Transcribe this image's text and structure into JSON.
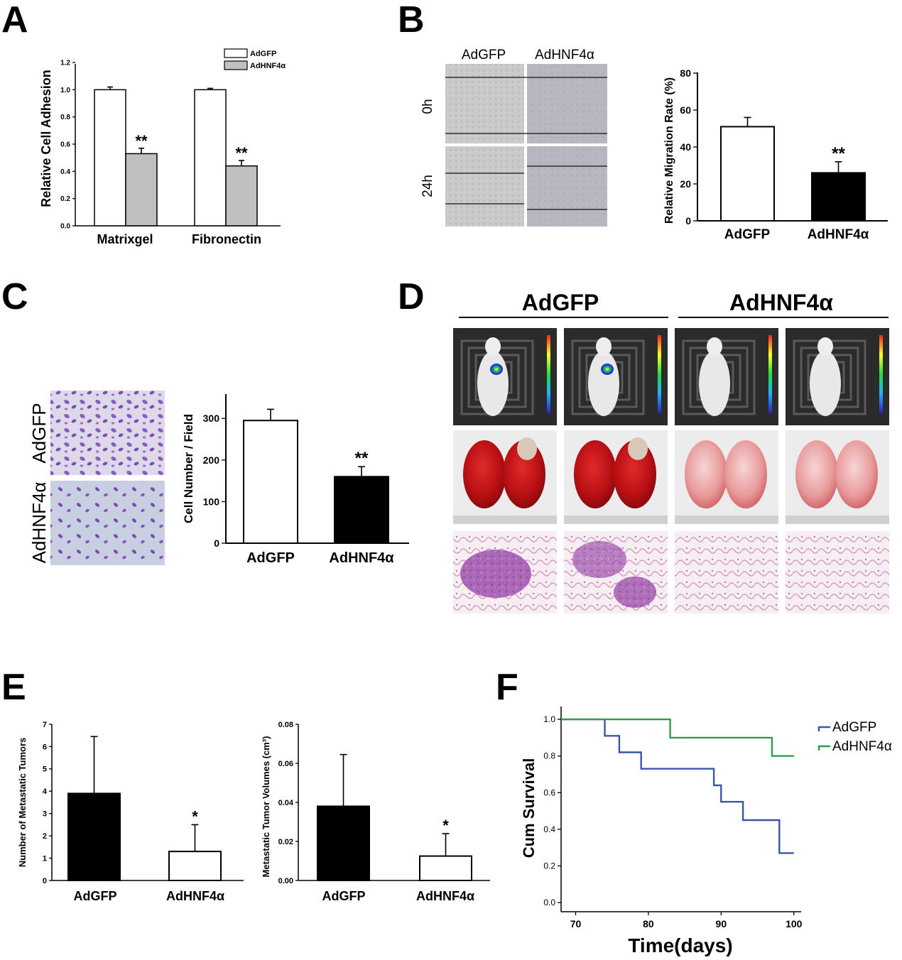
{
  "panels": {
    "A": "A",
    "B": "B",
    "C": "C",
    "D": "D",
    "E": "E",
    "F": "F"
  },
  "groups": {
    "gfp": "AdGFP",
    "hnf": "AdHNF4α"
  },
  "imaging": {
    "B_rows": [
      "0h",
      "24h"
    ],
    "B_cols": [
      "AdGFP",
      "AdHNF4α"
    ],
    "C_rows": [
      "AdGFP",
      "AdHNF4α"
    ],
    "D_headers": [
      "AdGFP",
      "AdHNF4α"
    ]
  },
  "colors": {
    "bar_white": "#ffffff",
    "bar_gray": "#c0c0c0",
    "bar_black": "#000000",
    "survival_gfp": "#3a56a8",
    "survival_hnf": "#2f9e4a"
  },
  "chart_data": [
    {
      "id": "A",
      "type": "bar",
      "categories": [
        "Matrixgel",
        "Fibronectin"
      ],
      "series": [
        {
          "name": "AdGFP",
          "values": [
            1.0,
            1.0
          ],
          "errors": [
            0.02,
            0.01
          ]
        },
        {
          "name": "AdHNF4α",
          "values": [
            0.53,
            0.44
          ],
          "errors": [
            0.04,
            0.04
          ]
        }
      ],
      "annotations": [
        [
          "",
          "**"
        ],
        [
          "",
          "**"
        ]
      ],
      "ylabel": "Relative Cell Adhesion",
      "xlabel": "",
      "ylim": [
        0,
        1.2
      ],
      "yticks": [
        "0.0",
        "0.2",
        "0.4",
        "0.6",
        "0.8",
        "1.0",
        "1.2"
      ],
      "legend": "top-right"
    },
    {
      "id": "B",
      "type": "bar",
      "categories": [
        "AdGFP",
        "AdHNF4α"
      ],
      "values": [
        51,
        26
      ],
      "errors": [
        5,
        6
      ],
      "annotations": [
        "",
        "**"
      ],
      "ylabel": "Relative Migration Rate (%)",
      "xlabel": "",
      "ylim": [
        0,
        80
      ],
      "yticks": [
        "0",
        "20",
        "40",
        "60",
        "80"
      ]
    },
    {
      "id": "C",
      "type": "bar",
      "categories": [
        "AdGFP",
        "AdHNF4α"
      ],
      "values": [
        295,
        160
      ],
      "errors": [
        27,
        24
      ],
      "annotations": [
        "",
        "**"
      ],
      "ylabel": "Cell Number / Field",
      "xlabel": "",
      "ylim": [
        0,
        350
      ],
      "yticks": [
        "0",
        "100",
        "200",
        "300"
      ]
    },
    {
      "id": "E1",
      "type": "bar",
      "categories": [
        "AdGFP",
        "AdHNF4α"
      ],
      "values": [
        3.9,
        1.3
      ],
      "errors": [
        2.55,
        1.2
      ],
      "annotations": [
        "",
        "*"
      ],
      "ylabel": "Number of Metastatic Tumors",
      "xlabel": "",
      "ylim": [
        0,
        7
      ],
      "yticks": [
        "0",
        "1",
        "2",
        "3",
        "4",
        "5",
        "6",
        "7"
      ]
    },
    {
      "id": "E2",
      "type": "bar",
      "categories": [
        "AdGFP",
        "AdHNF4α"
      ],
      "values": [
        0.038,
        0.0125
      ],
      "errors": [
        0.0265,
        0.0115
      ],
      "annotations": [
        "",
        "*"
      ],
      "ylabel": "Metastatic Tumor Volumes (cm³)",
      "xlabel": "",
      "ylim": [
        0,
        0.08
      ],
      "yticks": [
        "0.00",
        "0.02",
        "0.04",
        "0.06",
        "0.08"
      ]
    },
    {
      "id": "F",
      "type": "line",
      "series": [
        {
          "name": "AdGFP",
          "x": [
            68,
            74,
            74,
            76,
            76,
            79,
            79,
            89,
            89,
            90,
            90,
            93,
            93,
            98,
            98,
            100
          ],
          "y": [
            1.0,
            1.0,
            0.91,
            0.91,
            0.82,
            0.82,
            0.73,
            0.73,
            0.64,
            0.64,
            0.55,
            0.55,
            0.45,
            0.45,
            0.27,
            0.27
          ]
        },
        {
          "name": "AdHNF4α",
          "x": [
            68,
            83,
            83,
            97,
            97,
            100
          ],
          "y": [
            1.0,
            1.0,
            0.9,
            0.9,
            0.8,
            0.8
          ]
        }
      ],
      "xlabel": "Time(days)",
      "ylabel": "Cum Survival",
      "xlim": [
        68,
        101
      ],
      "ylim": [
        -0.05,
        1.07
      ],
      "xticks": [
        70,
        80,
        90,
        100
      ],
      "yticks": [
        "0.0",
        "0.2",
        "0.4",
        "0.6",
        "0.8",
        "1.0"
      ],
      "legend": "top-right"
    }
  ]
}
